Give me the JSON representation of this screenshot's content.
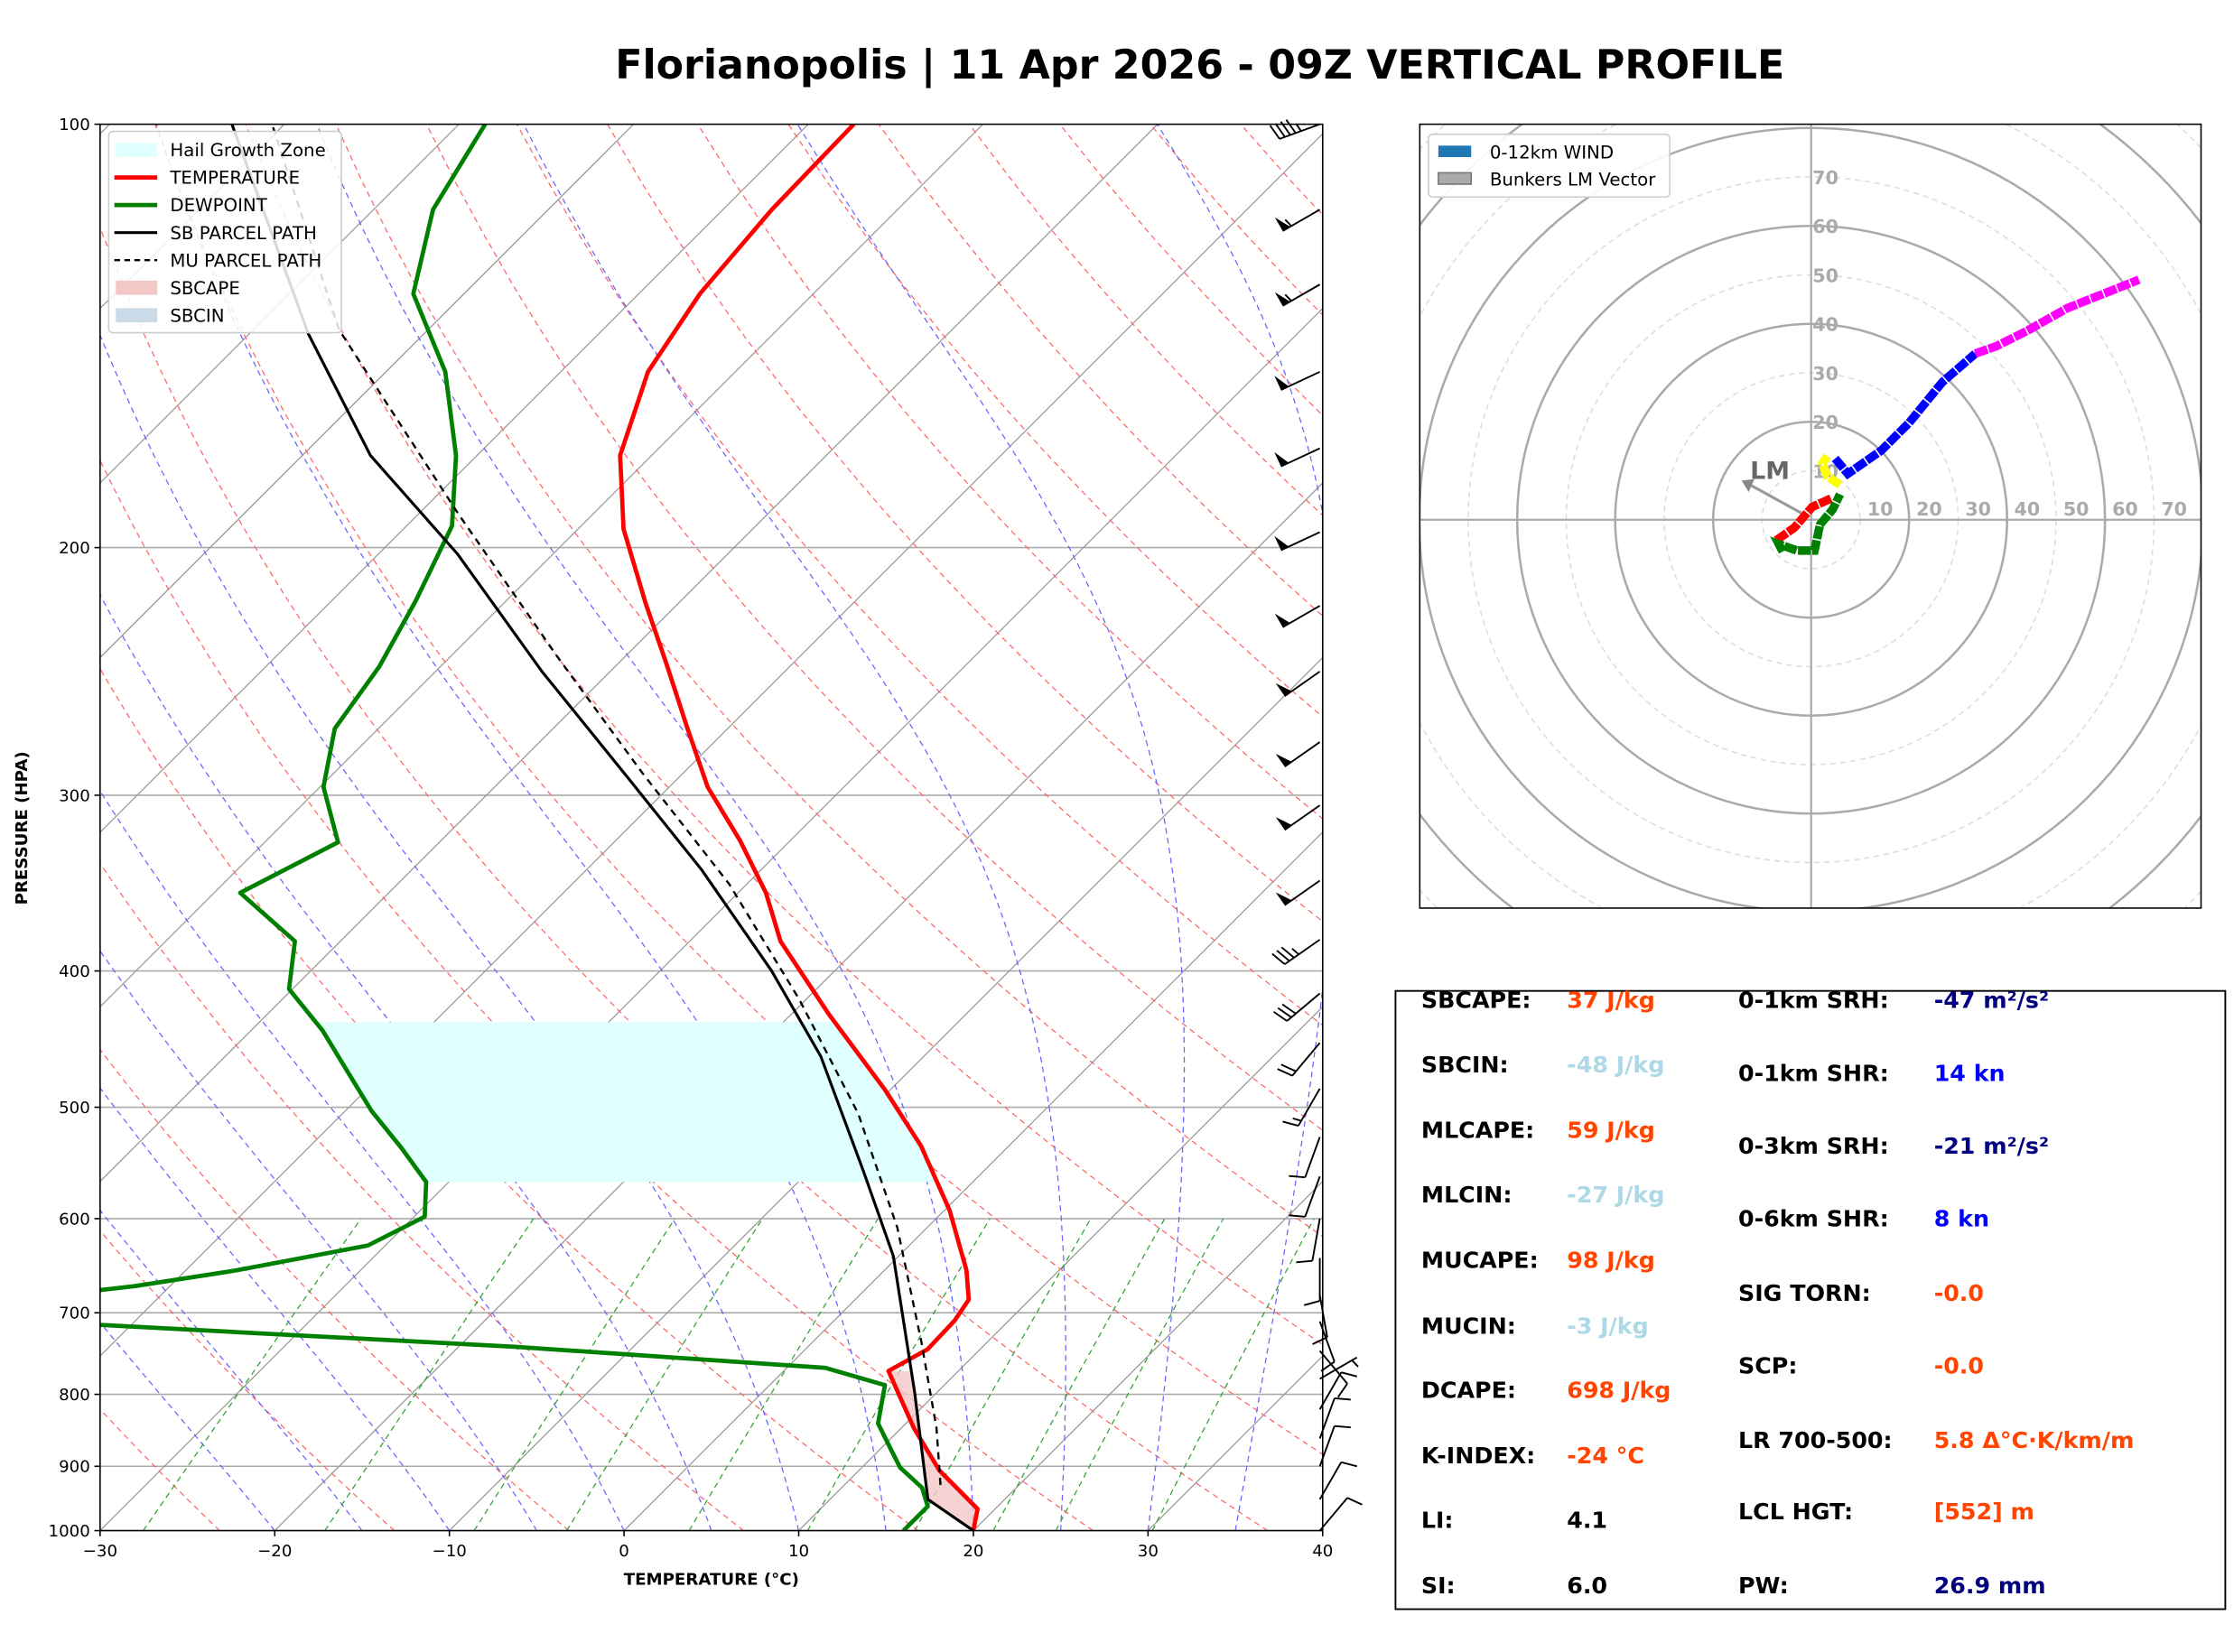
{
  "title": "Florianopolis | 11 Apr 2026 - 09Z VERTICAL PROFILE",
  "chart_data": [
    {
      "type": "line",
      "xlabel": "TEMPERATURE (°C)",
      "ylabel": "PRESSURE (HPA)",
      "xlim": [
        -30,
        40
      ],
      "ylim": [
        1000,
        100
      ],
      "y_scale": "log",
      "skew": "skew-T",
      "grid": true,
      "legend_position": "top-left",
      "x_ticks": [
        "−30",
        "−20",
        "−10",
        "0",
        "10",
        "20",
        "30",
        "40"
      ],
      "y_ticks": [
        "100",
        "200",
        "300",
        "400",
        "500",
        "600",
        "700",
        "800",
        "900",
        "1000"
      ],
      "legend": [
        "Hail Growth Zone",
        "TEMPERATURE",
        "DEWPOINT",
        "SB PARCEL PATH",
        "MU PARCEL PATH",
        "SBCAPE",
        "SBCIN"
      ],
      "colors": {
        "temperature": "#ff0000",
        "dewpoint": "#008000",
        "parcel": "#000000",
        "hail": "#e0ffff",
        "sbcape": "#f4c7c7",
        "sbcin": "#c9dbe8",
        "isotherm": "#999999",
        "dry_adiabat": "#ff6666",
        "moist_adiabat": "#6666ff",
        "mixing_ratio": "#33a033"
      },
      "series": [
        {
          "name": "TEMPERATURE",
          "p": [
            1000,
            965,
            906,
            845,
            770,
            743,
            709,
            685,
            653,
            592,
            533,
            486,
            429,
            381,
            352,
            323,
            296,
            269,
            242,
            219,
            194,
            172,
            150,
            132,
            115,
            100
          ],
          "t": [
            20.0,
            19.0,
            14.6,
            10.7,
            6.0,
            7.0,
            6.9,
            6.5,
            4.7,
            0.3,
            -5.0,
            -10.3,
            -17.9,
            -24.8,
            -28.4,
            -32.9,
            -37.8,
            -42.3,
            -47.2,
            -51.9,
            -57.4,
            -61.8,
            -65.0,
            -66.5,
            -67.2,
            -67.4
          ]
        },
        {
          "name": "DEWPOINT",
          "p": [
            1000,
            961,
            932,
            902,
            875,
            839,
            788,
            766,
            740,
            714,
            690,
            670,
            653,
            627,
            598,
            565,
            535,
            503,
            441,
            412,
            381,
            352,
            324,
            296,
            269,
            243,
            218,
            193,
            172,
            150,
            132,
            115,
            100
          ],
          "t": [
            16.0,
            16.0,
            14.6,
            12.2,
            10.6,
            8.4,
            6.6,
            2.2,
            -16.8,
            -41.8,
            -50.0,
            -42.0,
            -37.1,
            -31.0,
            -29.4,
            -31.3,
            -34.6,
            -38.5,
            -45.9,
            -50.2,
            -52.6,
            -58.5,
            -55.8,
            -59.8,
            -62.5,
            -63.5,
            -65.2,
            -67.4,
            -71.2,
            -76.6,
            -82.9,
            -86.6,
            -88.5
          ]
        },
        {
          "name": "SB PARCEL PATH",
          "p": [
            1000,
            950,
            797,
            638,
            555,
            460,
            400,
            339,
            292,
            245,
            202,
            172,
            141,
            100
          ],
          "t": [
            20.0,
            15.6,
            8.7,
            -0.3,
            -6.9,
            -15.9,
            -23.6,
            -33.4,
            -42.8,
            -53.9,
            -65.5,
            -76.1,
            -86.6,
            -103.0
          ]
        },
        {
          "name": "MU PARCEL PATH",
          "p": [
            928,
            845,
            734,
            609,
            505,
            419,
            347,
            289,
            239,
            189,
            140,
            100
          ],
          "t": [
            15.5,
            12.0,
            6.2,
            -1.7,
            -10.5,
            -20.4,
            -31.0,
            -42.4,
            -53.9,
            -67.8,
            -85.1,
            -100.7
          ]
        }
      ],
      "hail_growth_zone_hpa": [
        565,
        435
      ],
      "wind_barbs": [
        {
          "p": 100,
          "kt": 45,
          "dir": 250
        },
        {
          "p": 115,
          "kt": 55,
          "dir": 240
        },
        {
          "p": 130,
          "kt": 55,
          "dir": 240
        },
        {
          "p": 150,
          "kt": 50,
          "dir": 245
        },
        {
          "p": 170,
          "kt": 50,
          "dir": 245
        },
        {
          "p": 195,
          "kt": 50,
          "dir": 245
        },
        {
          "p": 220,
          "kt": 50,
          "dir": 240
        },
        {
          "p": 245,
          "kt": 50,
          "dir": 235
        },
        {
          "p": 275,
          "kt": 50,
          "dir": 235
        },
        {
          "p": 305,
          "kt": 50,
          "dir": 235
        },
        {
          "p": 345,
          "kt": 50,
          "dir": 235
        },
        {
          "p": 380,
          "kt": 35,
          "dir": 235
        },
        {
          "p": 415,
          "kt": 30,
          "dir": 230
        },
        {
          "p": 450,
          "kt": 20,
          "dir": 220
        },
        {
          "p": 485,
          "kt": 15,
          "dir": 210
        },
        {
          "p": 525,
          "kt": 10,
          "dir": 200
        },
        {
          "p": 560,
          "kt": 10,
          "dir": 200
        },
        {
          "p": 600,
          "kt": 10,
          "dir": 190
        },
        {
          "p": 640,
          "kt": 10,
          "dir": 180
        },
        {
          "p": 680,
          "kt": 10,
          "dir": 170
        },
        {
          "p": 710,
          "kt": 10,
          "dir": 160
        },
        {
          "p": 745,
          "kt": 10,
          "dir": 140
        },
        {
          "p": 780,
          "kt": 5,
          "dir": 60
        },
        {
          "p": 820,
          "kt": 10,
          "dir": 30
        },
        {
          "p": 860,
          "kt": 10,
          "dir": 20
        },
        {
          "p": 900,
          "kt": 10,
          "dir": 20
        },
        {
          "p": 950,
          "kt": 10,
          "dir": 30
        },
        {
          "p": 1000,
          "kt": 10,
          "dir": 40
        }
      ]
    },
    {
      "type": "line",
      "chart": "hodograph",
      "units": "kt",
      "ring_labels": [
        "10",
        "20",
        "30",
        "40",
        "50",
        "60",
        "70"
      ],
      "legend": [
        "0-12km WIND",
        "Bunkers LM Vector"
      ],
      "legend_position": "top-left",
      "legend_colors": {
        "wind": "#1f77b4",
        "lm": "#aaaaaa"
      },
      "segments": [
        {
          "color": "#ff0000",
          "u": [
            -7.1,
            -3.4,
            0.2,
            4.2
          ],
          "v": [
            -4.2,
            -1.6,
            2.6,
            4.4
          ]
        },
        {
          "color": "#008000",
          "u": [
            -5.8,
            -6.6,
            -2.9,
            0.7,
            1.8,
            4.4,
            5.9
          ],
          "v": [
            -6.5,
            -5.0,
            -6.3,
            -6.3,
            -1.0,
            2.1,
            5.2
          ]
        },
        {
          "color": "#ffff00",
          "u": [
            5.9,
            3.3,
            2.3,
            3.3
          ],
          "v": [
            7.1,
            8.9,
            11.5,
            13.0
          ]
        },
        {
          "color": "#0000ff",
          "u": [
            4.9,
            7.5,
            14.3,
            20.0,
            26.8,
            33.5
          ],
          "v": [
            12.5,
            9.4,
            14.1,
            19.8,
            28.1,
            33.9
          ]
        },
        {
          "color": "#ff00ff",
          "u": [
            33.5,
            37.7,
            44.0,
            52.3,
            66.9
          ],
          "v": [
            33.9,
            35.4,
            38.5,
            43.2,
            49.0
          ]
        }
      ],
      "bunkers_lm": {
        "label": "LM",
        "u": -14.2,
        "v": 8.0,
        "from_u": -1.9,
        "from_v": 1.3
      }
    }
  ],
  "indices": {
    "left": [
      {
        "label": "SBCAPE:",
        "value": "37 J/kg",
        "color": "#ff4500"
      },
      {
        "label": "SBCIN:",
        "value": "-48 J/kg",
        "color": "#add8e6"
      },
      {
        "label": "MLCAPE:",
        "value": "59 J/kg",
        "color": "#ff4500"
      },
      {
        "label": "MLCIN:",
        "value": "-27 J/kg",
        "color": "#add8e6"
      },
      {
        "label": "MUCAPE:",
        "value": "98 J/kg",
        "color": "#ff4500"
      },
      {
        "label": "MUCIN:",
        "value": "-3 J/kg",
        "color": "#add8e6"
      },
      {
        "label": "DCAPE:",
        "value": "698 J/kg",
        "color": "#ff4500"
      },
      {
        "label": "K-INDEX:",
        "value": "-24 °C",
        "color": "#ff4500"
      },
      {
        "label": "LI:",
        "value": "4.1",
        "color": "#000000"
      },
      {
        "label": "SI:",
        "value": "6.0",
        "color": "#000000"
      }
    ],
    "right": [
      {
        "label": "0-1km SRH:",
        "value": "-47 m²/s²",
        "color": "#000080"
      },
      {
        "label": "0-1km SHR:",
        "value": "14 kn",
        "color": "#0000ff"
      },
      {
        "label": "0-3km SRH:",
        "value": "-21 m²/s²",
        "color": "#000080"
      },
      {
        "label": "0-6km SHR:",
        "value": "8 kn",
        "color": "#0000ff"
      },
      {
        "label": "SIG TORN:",
        "value": "-0.0",
        "color": "#ff4500"
      },
      {
        "label": "SCP:",
        "value": "-0.0",
        "color": "#ff4500"
      },
      {
        "label": "LR 700-500:",
        "value": "5.8 Δ°C·K/km/m",
        "color": "#ff4500"
      },
      {
        "label": "LCL HGT:",
        "value": "[552] m",
        "color": "#ff4500"
      },
      {
        "label": "PW:",
        "value": "26.9 mm",
        "color": "#000080"
      }
    ]
  }
}
